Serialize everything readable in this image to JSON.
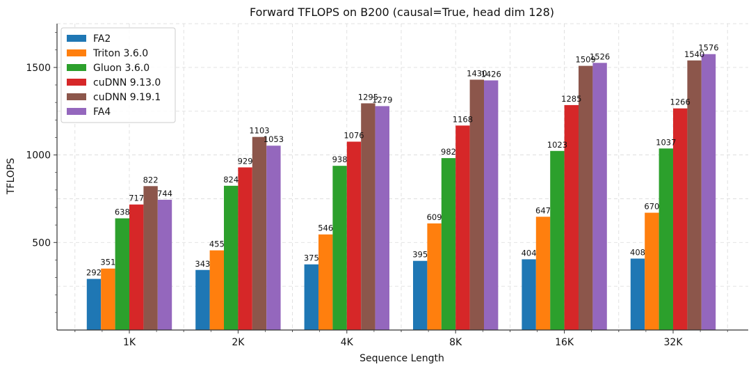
{
  "chart_data": {
    "type": "bar",
    "title": "Forward TFLOPS on B200 (causal=True, head dim 128)",
    "xlabel": "Sequence Length",
    "ylabel": "TFLOPS",
    "categories": [
      "1K",
      "2K",
      "4K",
      "8K",
      "16K",
      "32K"
    ],
    "ylim": [
      0,
      1750
    ],
    "yticks": [
      500,
      1000,
      1500
    ],
    "grid": true,
    "legend_position": "top-left",
    "series": [
      {
        "name": "FA2",
        "color": "#1f77b4",
        "values": [
          292,
          343,
          375,
          395,
          404,
          408
        ]
      },
      {
        "name": "Triton 3.6.0",
        "color": "#ff7f0e",
        "values": [
          351,
          455,
          546,
          609,
          647,
          670
        ]
      },
      {
        "name": "Gluon 3.6.0",
        "color": "#2ca02c",
        "values": [
          638,
          824,
          938,
          982,
          1023,
          1037
        ]
      },
      {
        "name": "cuDNN 9.13.0",
        "color": "#d62728",
        "values": [
          717,
          929,
          1076,
          1168,
          1285,
          1266
        ]
      },
      {
        "name": "cuDNN 9.19.1",
        "color": "#8c564b",
        "values": [
          822,
          1103,
          1295,
          1430,
          1509,
          1540
        ]
      },
      {
        "name": "FA4",
        "color": "#9467bd",
        "values": [
          744,
          1053,
          1279,
          1426,
          1526,
          1576
        ]
      }
    ]
  }
}
